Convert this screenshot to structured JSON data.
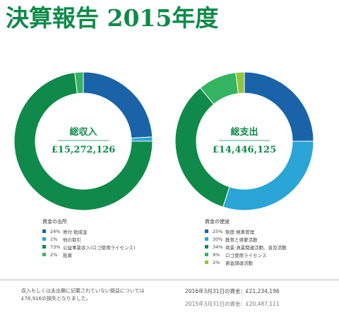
{
  "title": "決算報告 2015年度",
  "chart_data": [
    {
      "type": "pie",
      "donut": true,
      "center_label": "総収入",
      "center_value": "£15,272,126",
      "legend_title": "資金の出所",
      "categories": [
        "寄付·助成金",
        "他の取引",
        "公益事業収入(ロゴ使用ライセンス)",
        "投資"
      ],
      "percent_labels": [
        "24%",
        "1%",
        "73%",
        "2%"
      ],
      "values": [
        24,
        1,
        73,
        2
      ],
      "colors": [
        "#1a63a8",
        "#2aa5d6",
        "#0f8a4a",
        "#34b361"
      ]
    },
    {
      "type": "pie",
      "donut": true,
      "center_label": "総支出",
      "center_value": "£14,446,125",
      "legend_title": "資金の使途",
      "categories": [
        "制度·規準管理",
        "教育と啓蒙活動",
        "商業·漁業関連活動、普及活動",
        "ロゴ使用ライセンス",
        "資金調達活動"
      ],
      "percent_labels": [
        "25%",
        "30%",
        "34%",
        "9%",
        "2%"
      ],
      "values": [
        25,
        30,
        34,
        9,
        2
      ],
      "colors": [
        "#1a63a8",
        "#2aa5d6",
        "#0f8a4a",
        "#34b361",
        "#8cc63f"
      ]
    }
  ],
  "footer": {
    "note": "収入もしくは支出欄に記載されていない損益については£78,916の損失となりました。",
    "balance_2016": "2016年3月31日の資金：£21,234,196",
    "balance_2015": "2015年3月31日の資金：£20,487,111"
  }
}
